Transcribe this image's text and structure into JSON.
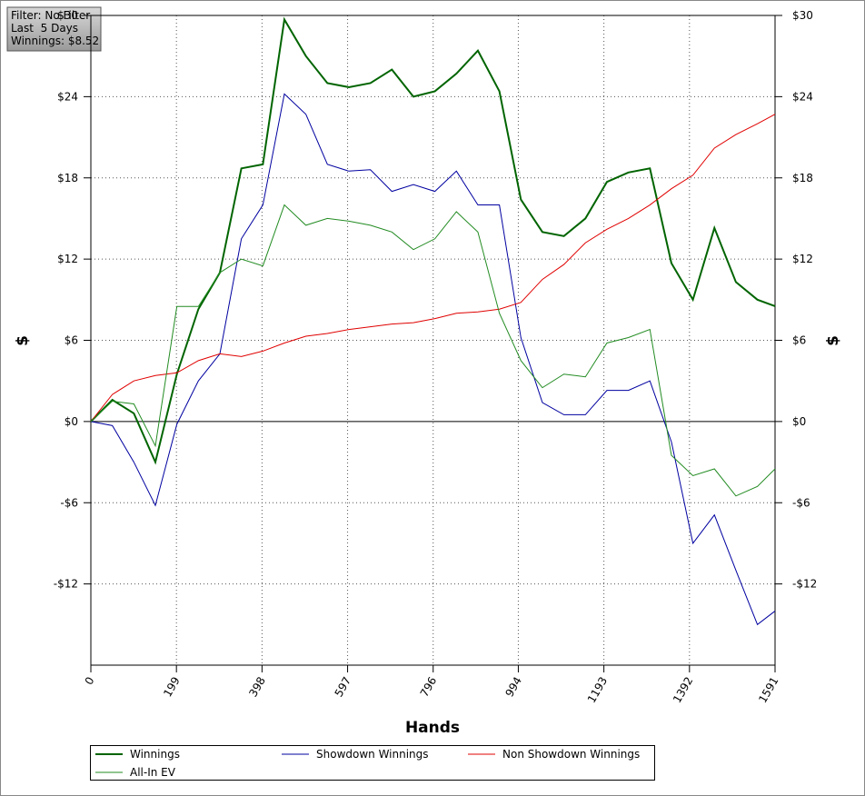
{
  "chart_data": {
    "type": "line",
    "annotations": [
      "Filter: No Filter",
      "Last  5 Days",
      "Winnings: $8.52"
    ],
    "x_label": "Hands",
    "y_label": "$",
    "y2_label": "$",
    "x": [
      0,
      50,
      100,
      150,
      200,
      250,
      300,
      350,
      400,
      450,
      500,
      550,
      600,
      650,
      700,
      750,
      800,
      850,
      900,
      950,
      1000,
      1050,
      1100,
      1150,
      1200,
      1250,
      1300,
      1350,
      1400,
      1450,
      1500,
      1550,
      1591
    ],
    "series": [
      {
        "name": "Winnings",
        "color": "#006400",
        "values": [
          0,
          1.6,
          0.6,
          -3,
          3.5,
          8.3,
          11,
          18.7,
          19,
          29.7,
          27,
          25,
          24.7,
          25,
          26,
          24,
          24.4,
          25.7,
          27.4,
          24.4,
          16.4,
          14,
          13.7,
          15,
          17.7,
          18.4,
          18.7,
          11.7,
          9,
          14.3,
          10.3,
          9,
          8.52
        ]
      },
      {
        "name": "Showdown Winnings",
        "color": "#0000a0",
        "values": [
          0,
          -0.3,
          -3,
          -6.2,
          -0.2,
          3,
          5,
          13.5,
          16,
          24.2,
          22.7,
          19,
          18.5,
          18.6,
          17,
          17.5,
          17,
          18.5,
          16,
          16,
          6.2,
          1.4,
          0.5,
          0.5,
          2.3,
          2.3,
          3,
          -1.5,
          -9,
          -6.9,
          -11,
          -15,
          -14
        ]
      },
      {
        "name": "Non Showdown Winnings",
        "color": "#e00000",
        "values": [
          0,
          2,
          3,
          3.4,
          3.6,
          4.5,
          5,
          4.8,
          5.2,
          5.8,
          6.3,
          6.5,
          6.8,
          7,
          7.2,
          7.3,
          7.6,
          8,
          8.1,
          8.3,
          8.8,
          10.5,
          11.6,
          13.2,
          14.2,
          15,
          16,
          17.2,
          18.2,
          20.2,
          21.2,
          22,
          22.7
        ]
      },
      {
        "name": "All-In EV",
        "color": "#228b22",
        "values": [
          0,
          1.5,
          1.3,
          -1.8,
          8.5,
          8.5,
          11,
          12,
          11.5,
          16,
          14.5,
          15,
          14.8,
          14.5,
          14,
          12.7,
          13.5,
          15.5,
          14,
          8,
          4.5,
          2.5,
          3.5,
          3.3,
          5.8,
          6.2,
          6.8,
          -2.5,
          -4,
          -3.5,
          -5.5,
          -4.8,
          -3.5
        ]
      }
    ],
    "xlim": [
      0,
      1591
    ],
    "xticks": [
      0,
      199,
      398,
      597,
      796,
      994,
      1193,
      1392,
      1591
    ],
    "ylim": [
      -18,
      30
    ],
    "yticks": [
      {
        "value": 30,
        "label": "$30"
      },
      {
        "value": 24,
        "label": "$24"
      },
      {
        "value": 18,
        "label": "$18"
      },
      {
        "value": 12,
        "label": "$12"
      },
      {
        "value": 6,
        "label": "$6"
      },
      {
        "value": 0,
        "label": "$0"
      },
      {
        "value": -6,
        "label": "-$6"
      },
      {
        "value": -12,
        "label": "-$12"
      }
    ],
    "grid": true
  }
}
